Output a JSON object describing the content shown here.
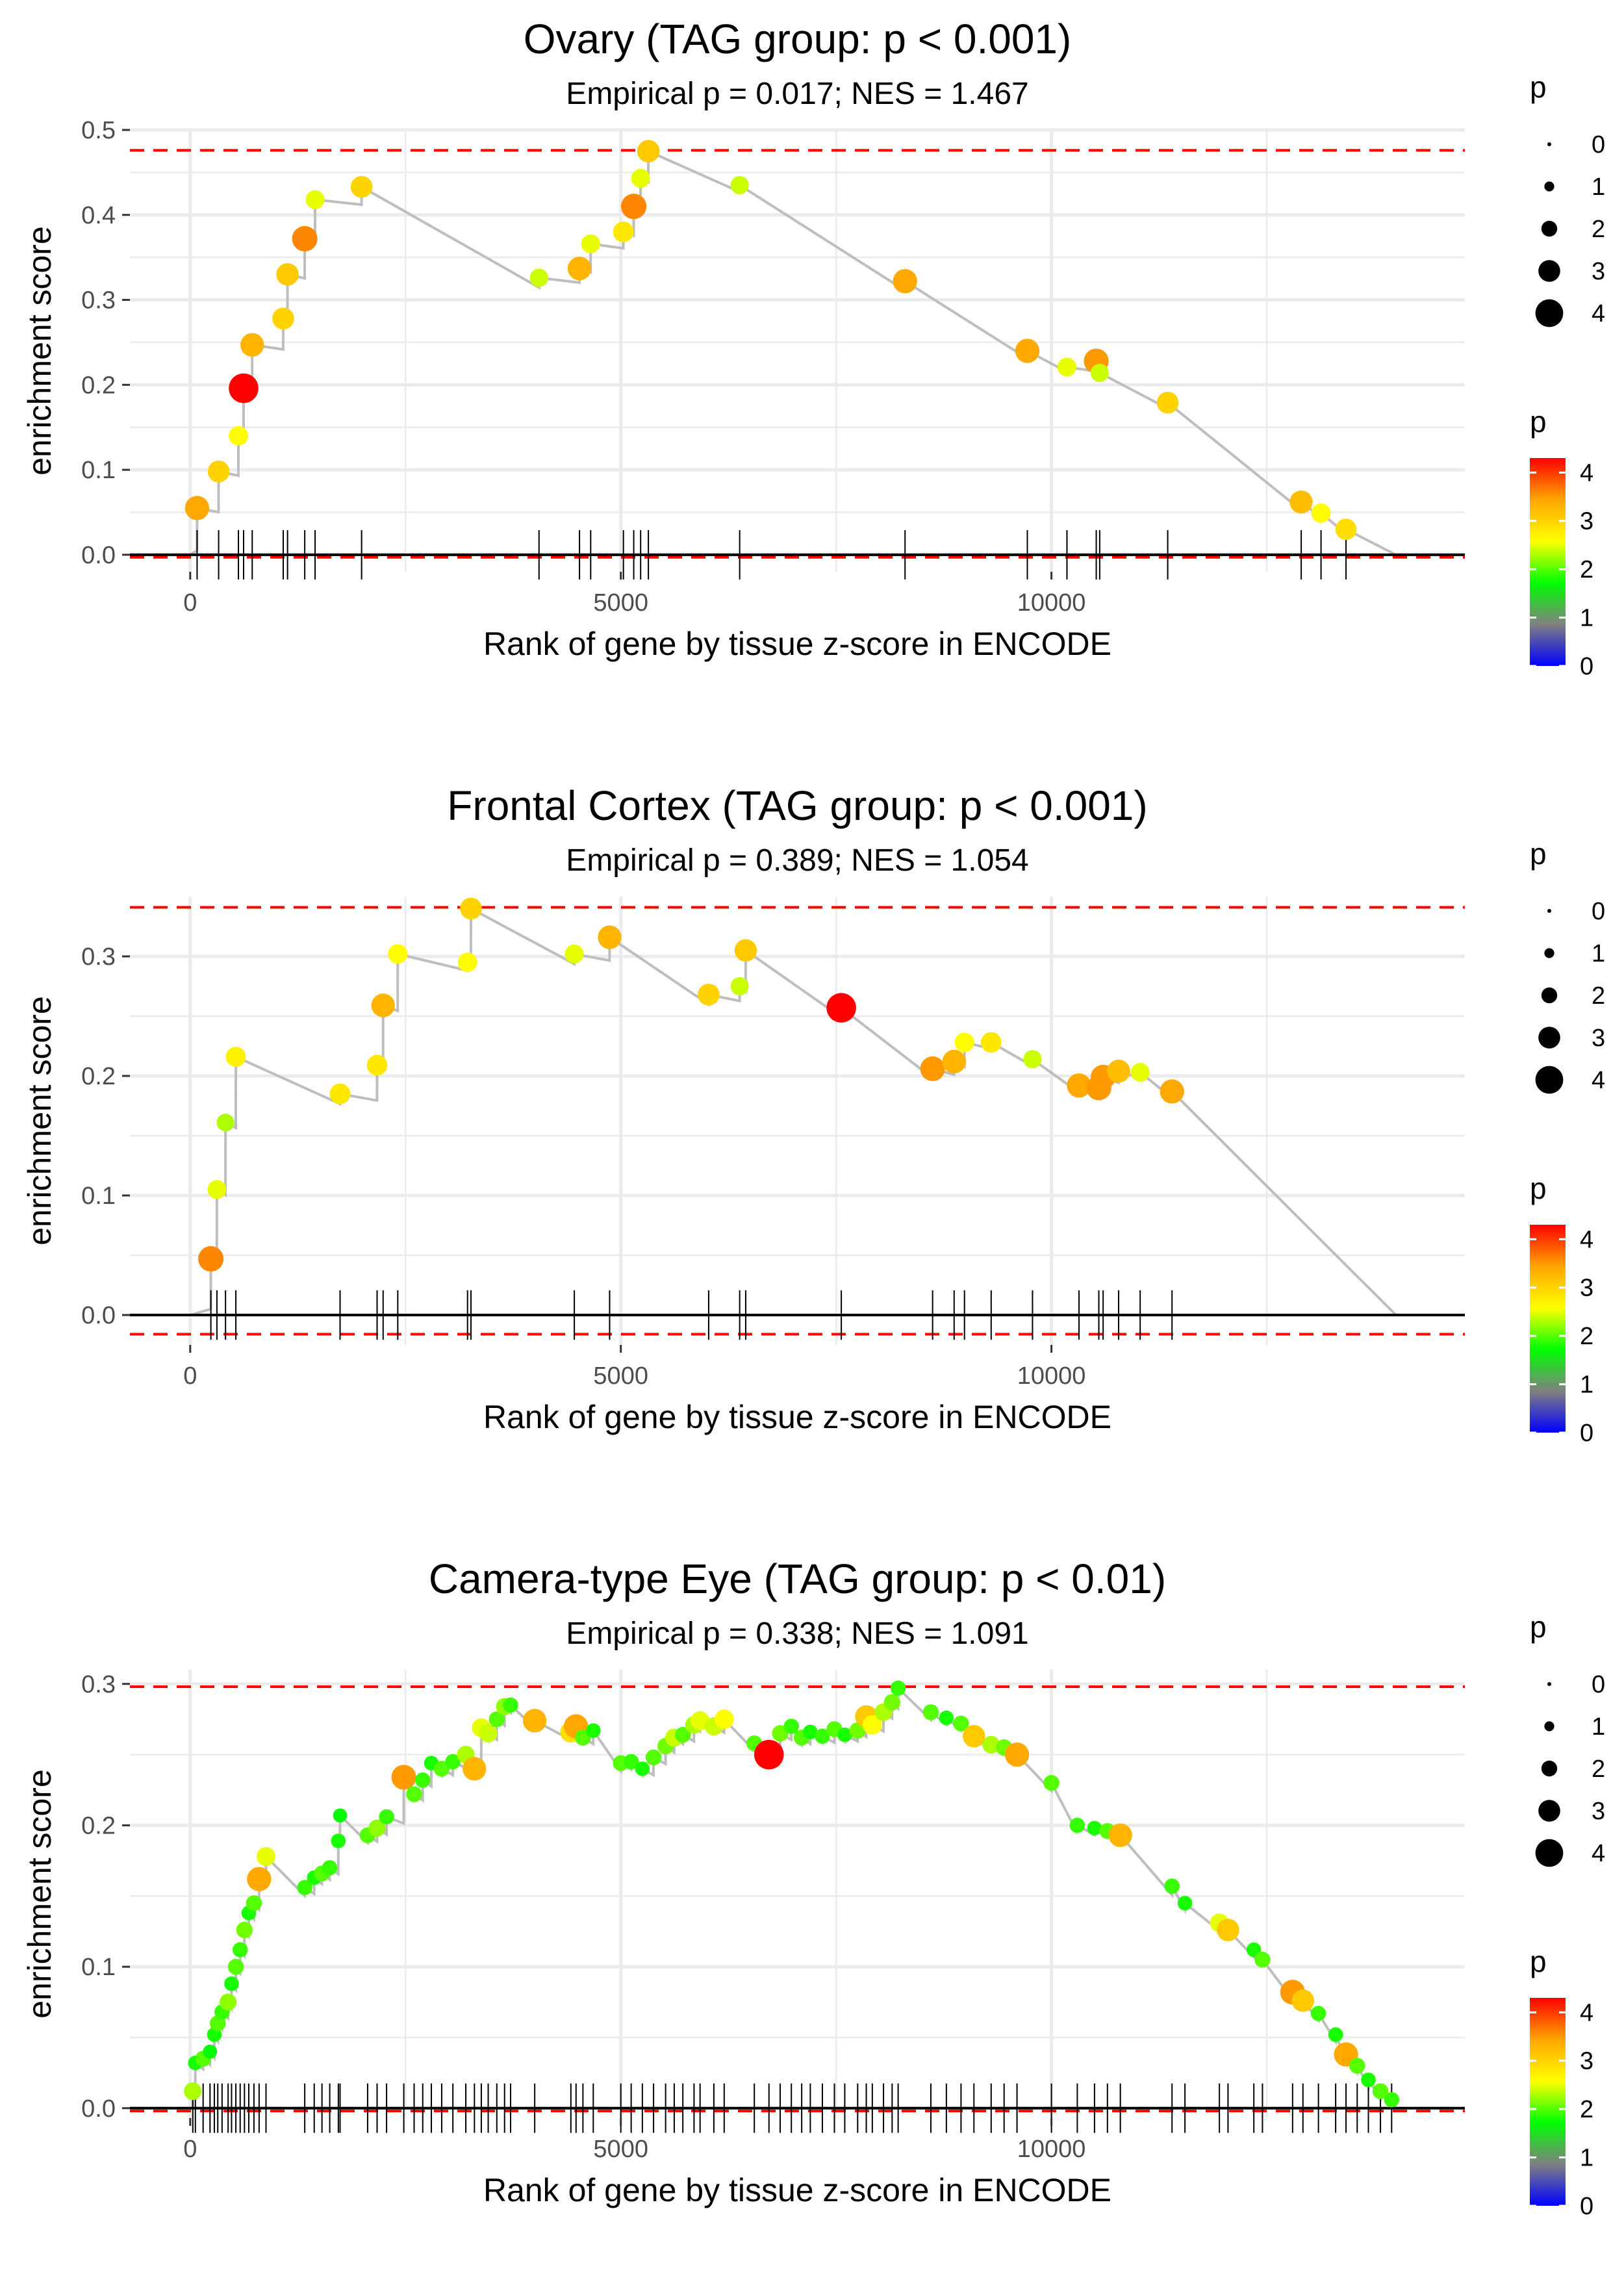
{
  "chart_data": [
    {
      "type": "scatter",
      "title": "Ovary (TAG group: p < 0.001)",
      "subtitle": "Empirical p = 0.017; NES = 1.467",
      "xlabel": "Rank of gene by tissue z-score in ENCODE",
      "ylabel": "enrichment score",
      "xlim": [
        -700,
        14800
      ],
      "ylim": [
        -0.02,
        0.5
      ],
      "x_ticks": [
        0,
        5000,
        10000
      ],
      "y_ticks": [
        0.0,
        0.1,
        0.2,
        0.3,
        0.4,
        0.5
      ],
      "y_tick_labels": [
        "0.0",
        "0.1",
        "0.2",
        "0.3",
        "0.4",
        "0.5"
      ],
      "max_es": 0.476,
      "min_es": -0.003,
      "end_rank": 14000,
      "points": [
        {
          "x": 80,
          "y": 0.055,
          "p": 3.4
        },
        {
          "x": 330,
          "y": 0.098,
          "p": 3.0
        },
        {
          "x": 560,
          "y": 0.14,
          "p": 2.6
        },
        {
          "x": 620,
          "y": 0.196,
          "p": 4.3
        },
        {
          "x": 720,
          "y": 0.247,
          "p": 3.3
        },
        {
          "x": 1080,
          "y": 0.278,
          "p": 3.0
        },
        {
          "x": 1130,
          "y": 0.33,
          "p": 3.1
        },
        {
          "x": 1330,
          "y": 0.372,
          "p": 3.6
        },
        {
          "x": 1450,
          "y": 0.418,
          "p": 2.5
        },
        {
          "x": 1990,
          "y": 0.433,
          "p": 3.0
        },
        {
          "x": 4050,
          "y": 0.326,
          "p": 2.4
        },
        {
          "x": 4520,
          "y": 0.337,
          "p": 3.3
        },
        {
          "x": 4650,
          "y": 0.366,
          "p": 2.5
        },
        {
          "x": 5030,
          "y": 0.38,
          "p": 2.8
        },
        {
          "x": 5150,
          "y": 0.41,
          "p": 3.6
        },
        {
          "x": 5230,
          "y": 0.443,
          "p": 2.5
        },
        {
          "x": 5320,
          "y": 0.475,
          "p": 3.1
        },
        {
          "x": 6380,
          "y": 0.435,
          "p": 2.4
        },
        {
          "x": 8300,
          "y": 0.322,
          "p": 3.4
        },
        {
          "x": 9720,
          "y": 0.24,
          "p": 3.4
        },
        {
          "x": 10180,
          "y": 0.221,
          "p": 2.5
        },
        {
          "x": 10520,
          "y": 0.228,
          "p": 3.5
        },
        {
          "x": 10560,
          "y": 0.214,
          "p": 2.4
        },
        {
          "x": 11350,
          "y": 0.179,
          "p": 3.0
        },
        {
          "x": 12900,
          "y": 0.062,
          "p": 3.2
        },
        {
          "x": 13130,
          "y": 0.049,
          "p": 2.6
        },
        {
          "x": 13420,
          "y": 0.03,
          "p": 2.9
        }
      ]
    },
    {
      "type": "scatter",
      "title": "Frontal Cortex (TAG group: p < 0.001)",
      "subtitle": "Empirical p = 0.389; NES = 1.054",
      "xlabel": "Rank of gene by tissue z-score in ENCODE",
      "ylabel": "enrichment score",
      "xlim": [
        -700,
        14800
      ],
      "ylim": [
        -0.025,
        0.35
      ],
      "x_ticks": [
        0,
        5000,
        10000
      ],
      "y_ticks": [
        0.0,
        0.1,
        0.2,
        0.3
      ],
      "y_tick_labels": [
        "0.0",
        "0.1",
        "0.2",
        "0.3"
      ],
      "max_es": 0.341,
      "min_es": -0.016,
      "end_rank": 14000,
      "points": [
        {
          "x": 240,
          "y": 0.047,
          "p": 3.6
        },
        {
          "x": 310,
          "y": 0.105,
          "p": 2.5
        },
        {
          "x": 410,
          "y": 0.161,
          "p": 2.3
        },
        {
          "x": 530,
          "y": 0.216,
          "p": 2.7
        },
        {
          "x": 1740,
          "y": 0.185,
          "p": 2.8
        },
        {
          "x": 2170,
          "y": 0.209,
          "p": 2.8
        },
        {
          "x": 2240,
          "y": 0.259,
          "p": 3.3
        },
        {
          "x": 2410,
          "y": 0.302,
          "p": 2.6
        },
        {
          "x": 3220,
          "y": 0.295,
          "p": 2.6
        },
        {
          "x": 3260,
          "y": 0.34,
          "p": 3.0
        },
        {
          "x": 4460,
          "y": 0.302,
          "p": 2.5
        },
        {
          "x": 4870,
          "y": 0.316,
          "p": 3.3
        },
        {
          "x": 6020,
          "y": 0.268,
          "p": 3.0
        },
        {
          "x": 6380,
          "y": 0.275,
          "p": 2.4
        },
        {
          "x": 6450,
          "y": 0.305,
          "p": 3.1
        },
        {
          "x": 7560,
          "y": 0.257,
          "p": 4.3
        },
        {
          "x": 8620,
          "y": 0.206,
          "p": 3.5
        },
        {
          "x": 8870,
          "y": 0.212,
          "p": 3.3
        },
        {
          "x": 8990,
          "y": 0.228,
          "p": 2.6
        },
        {
          "x": 9300,
          "y": 0.228,
          "p": 2.8
        },
        {
          "x": 9780,
          "y": 0.214,
          "p": 2.4
        },
        {
          "x": 10320,
          "y": 0.192,
          "p": 3.4
        },
        {
          "x": 10550,
          "y": 0.19,
          "p": 3.5
        },
        {
          "x": 10600,
          "y": 0.199,
          "p": 3.5
        },
        {
          "x": 10780,
          "y": 0.204,
          "p": 3.2
        },
        {
          "x": 11030,
          "y": 0.203,
          "p": 2.5
        },
        {
          "x": 11400,
          "y": 0.187,
          "p": 3.4
        }
      ]
    },
    {
      "type": "scatter",
      "title": "Camera-type Eye (TAG group: p < 0.01)",
      "subtitle": "Empirical p = 0.338; NES = 1.091",
      "xlabel": "Rank of gene by tissue z-score in ENCODE",
      "ylabel": "enrichment score",
      "xlim": [
        -700,
        14800
      ],
      "ylim": [
        -0.007,
        0.31
      ],
      "x_ticks": [
        0,
        5000,
        10000
      ],
      "y_ticks": [
        0.0,
        0.1,
        0.2,
        0.3
      ],
      "y_tick_labels": [
        "0.0",
        "0.1",
        "0.2",
        "0.3"
      ],
      "max_es": 0.298,
      "min_es": -0.002,
      "end_rank": 14000,
      "points": [
        {
          "x": 30,
          "y": 0.012,
          "p": 2.3
        },
        {
          "x": 60,
          "y": 0.032,
          "p": 1.8
        },
        {
          "x": 150,
          "y": 0.035,
          "p": 2.0
        },
        {
          "x": 230,
          "y": 0.04,
          "p": 1.7
        },
        {
          "x": 280,
          "y": 0.052,
          "p": 1.8
        },
        {
          "x": 320,
          "y": 0.06,
          "p": 2.0
        },
        {
          "x": 370,
          "y": 0.068,
          "p": 1.9
        },
        {
          "x": 440,
          "y": 0.075,
          "p": 2.2
        },
        {
          "x": 480,
          "y": 0.088,
          "p": 1.8
        },
        {
          "x": 530,
          "y": 0.1,
          "p": 2.0
        },
        {
          "x": 580,
          "y": 0.112,
          "p": 1.9
        },
        {
          "x": 630,
          "y": 0.126,
          "p": 2.1
        },
        {
          "x": 680,
          "y": 0.138,
          "p": 1.8
        },
        {
          "x": 740,
          "y": 0.145,
          "p": 2.0
        },
        {
          "x": 800,
          "y": 0.162,
          "p": 3.4
        },
        {
          "x": 880,
          "y": 0.178,
          "p": 2.5
        },
        {
          "x": 1330,
          "y": 0.156,
          "p": 1.9
        },
        {
          "x": 1440,
          "y": 0.163,
          "p": 1.8
        },
        {
          "x": 1530,
          "y": 0.166,
          "p": 2.0
        },
        {
          "x": 1620,
          "y": 0.17,
          "p": 1.9
        },
        {
          "x": 1720,
          "y": 0.189,
          "p": 1.8
        },
        {
          "x": 1740,
          "y": 0.207,
          "p": 1.7
        },
        {
          "x": 2060,
          "y": 0.193,
          "p": 2.0
        },
        {
          "x": 2170,
          "y": 0.198,
          "p": 2.2
        },
        {
          "x": 2280,
          "y": 0.206,
          "p": 1.9
        },
        {
          "x": 2480,
          "y": 0.234,
          "p": 3.5
        },
        {
          "x": 2600,
          "y": 0.222,
          "p": 2.0
        },
        {
          "x": 2700,
          "y": 0.232,
          "p": 1.9
        },
        {
          "x": 2800,
          "y": 0.244,
          "p": 1.8
        },
        {
          "x": 2920,
          "y": 0.24,
          "p": 2.0
        },
        {
          "x": 3050,
          "y": 0.245,
          "p": 1.9
        },
        {
          "x": 3200,
          "y": 0.25,
          "p": 2.3
        },
        {
          "x": 3300,
          "y": 0.24,
          "p": 3.3
        },
        {
          "x": 3380,
          "y": 0.269,
          "p": 2.5
        },
        {
          "x": 3460,
          "y": 0.265,
          "p": 2.4
        },
        {
          "x": 3560,
          "y": 0.275,
          "p": 2.0
        },
        {
          "x": 3650,
          "y": 0.284,
          "p": 2.2
        },
        {
          "x": 3720,
          "y": 0.285,
          "p": 1.9
        },
        {
          "x": 4000,
          "y": 0.274,
          "p": 3.3
        },
        {
          "x": 4420,
          "y": 0.266,
          "p": 2.9
        },
        {
          "x": 4480,
          "y": 0.27,
          "p": 3.4
        },
        {
          "x": 4560,
          "y": 0.262,
          "p": 2.0
        },
        {
          "x": 4680,
          "y": 0.267,
          "p": 1.8
        },
        {
          "x": 5000,
          "y": 0.244,
          "p": 2.0
        },
        {
          "x": 5120,
          "y": 0.245,
          "p": 1.9
        },
        {
          "x": 5250,
          "y": 0.24,
          "p": 1.8
        },
        {
          "x": 5380,
          "y": 0.248,
          "p": 2.0
        },
        {
          "x": 5520,
          "y": 0.256,
          "p": 2.1
        },
        {
          "x": 5620,
          "y": 0.262,
          "p": 2.4
        },
        {
          "x": 5720,
          "y": 0.264,
          "p": 2.0
        },
        {
          "x": 5850,
          "y": 0.271,
          "p": 2.3
        },
        {
          "x": 5920,
          "y": 0.274,
          "p": 2.5
        },
        {
          "x": 6080,
          "y": 0.27,
          "p": 2.4
        },
        {
          "x": 6200,
          "y": 0.275,
          "p": 2.6
        },
        {
          "x": 6550,
          "y": 0.258,
          "p": 2.0
        },
        {
          "x": 6720,
          "y": 0.25,
          "p": 4.3
        },
        {
          "x": 6850,
          "y": 0.265,
          "p": 2.1
        },
        {
          "x": 6980,
          "y": 0.27,
          "p": 1.9
        },
        {
          "x": 7100,
          "y": 0.262,
          "p": 2.0
        },
        {
          "x": 7200,
          "y": 0.266,
          "p": 1.8
        },
        {
          "x": 7340,
          "y": 0.263,
          "p": 1.9
        },
        {
          "x": 7480,
          "y": 0.268,
          "p": 2.0
        },
        {
          "x": 7600,
          "y": 0.264,
          "p": 1.8
        },
        {
          "x": 7750,
          "y": 0.267,
          "p": 2.1
        },
        {
          "x": 7850,
          "y": 0.277,
          "p": 3.1
        },
        {
          "x": 7920,
          "y": 0.271,
          "p": 2.6
        },
        {
          "x": 8050,
          "y": 0.28,
          "p": 2.3
        },
        {
          "x": 8150,
          "y": 0.287,
          "p": 2.1
        },
        {
          "x": 8220,
          "y": 0.297,
          "p": 1.9
        },
        {
          "x": 8600,
          "y": 0.28,
          "p": 2.0
        },
        {
          "x": 8780,
          "y": 0.276,
          "p": 1.8
        },
        {
          "x": 8950,
          "y": 0.272,
          "p": 2.0
        },
        {
          "x": 9100,
          "y": 0.263,
          "p": 3.1
        },
        {
          "x": 9300,
          "y": 0.257,
          "p": 2.3
        },
        {
          "x": 9450,
          "y": 0.255,
          "p": 2.1
        },
        {
          "x": 9600,
          "y": 0.25,
          "p": 3.4
        },
        {
          "x": 10000,
          "y": 0.23,
          "p": 2.0
        },
        {
          "x": 10300,
          "y": 0.2,
          "p": 1.9
        },
        {
          "x": 10500,
          "y": 0.198,
          "p": 1.8
        },
        {
          "x": 10650,
          "y": 0.196,
          "p": 2.0
        },
        {
          "x": 10800,
          "y": 0.193,
          "p": 3.3
        },
        {
          "x": 11400,
          "y": 0.157,
          "p": 1.9
        },
        {
          "x": 11550,
          "y": 0.145,
          "p": 1.8
        },
        {
          "x": 11950,
          "y": 0.131,
          "p": 2.5
        },
        {
          "x": 12050,
          "y": 0.126,
          "p": 3.1
        },
        {
          "x": 12350,
          "y": 0.112,
          "p": 1.8
        },
        {
          "x": 12450,
          "y": 0.105,
          "p": 2.0
        },
        {
          "x": 12800,
          "y": 0.082,
          "p": 3.5
        },
        {
          "x": 12920,
          "y": 0.076,
          "p": 3.1
        },
        {
          "x": 13100,
          "y": 0.067,
          "p": 1.9
        },
        {
          "x": 13300,
          "y": 0.052,
          "p": 1.8
        },
        {
          "x": 13420,
          "y": 0.038,
          "p": 3.4
        },
        {
          "x": 13550,
          "y": 0.03,
          "p": 2.0
        },
        {
          "x": 13680,
          "y": 0.02,
          "p": 1.8
        },
        {
          "x": 13820,
          "y": 0.012,
          "p": 2.0
        },
        {
          "x": 13950,
          "y": 0.006,
          "p": 1.9
        }
      ]
    }
  ],
  "legend": {
    "size_title": "p",
    "size_levels": [
      "0",
      "1",
      "2",
      "3",
      "4"
    ],
    "color_title": "p",
    "color_levels": [
      "4",
      "3",
      "2",
      "1",
      "0"
    ],
    "color_stops": [
      "#0000ff",
      "#808080",
      "#00ff00",
      "#ffff00",
      "#ffa500",
      "#ff0000"
    ]
  }
}
